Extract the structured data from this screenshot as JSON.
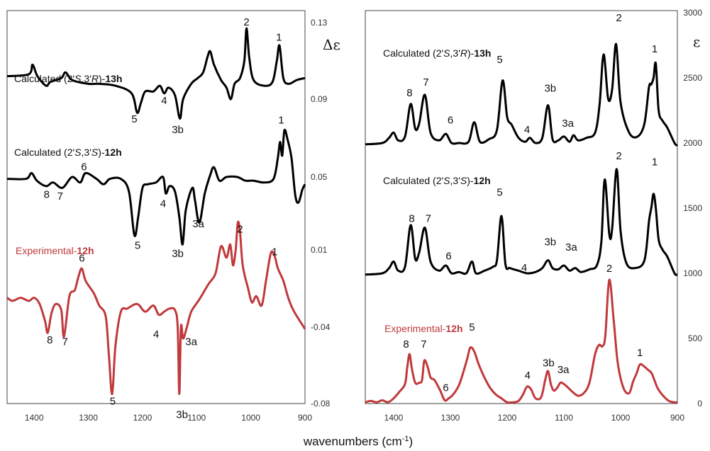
{
  "chart_data": [
    {
      "type": "line",
      "panel": "left",
      "y_symbol": "Δε",
      "xlim": [
        1450,
        900
      ],
      "ylim": [
        -0.08,
        0.13
      ],
      "x_ticks": [
        1400,
        1300,
        1200,
        1100,
        1000,
        900
      ],
      "y_ticks": [
        0.13,
        0.09,
        0.05,
        0.01,
        -0.04,
        -0.08
      ],
      "y_tick_labels": [
        "0.13",
        "0.09",
        "0.05",
        "0.01",
        "-0.04",
        "-0.08"
      ],
      "series": [
        {
          "label_pre": "Calculated (2'",
          "label_s1": "S",
          "label_mid": ",3'",
          "label_s2": "R",
          "label_post": ")-",
          "label_bold": "13h",
          "color": "#000000",
          "x": [
            1450,
            1410,
            1403,
            1394,
            1378,
            1370,
            1350,
            1342,
            1330,
            1300,
            1280,
            1250,
            1220,
            1210,
            1203,
            1195,
            1180,
            1168,
            1160,
            1152,
            1140,
            1131,
            1125,
            1110,
            1098,
            1088,
            1080,
            1075,
            1068,
            1055,
            1045,
            1037,
            1030,
            1020,
            1012,
            1008,
            1003,
            995,
            975,
            960,
            952,
            947,
            940,
            930,
            915,
            900
          ],
          "y": [
            0.102,
            0.103,
            0.108,
            0.102,
            0.097,
            0.099,
            0.101,
            0.104,
            0.1,
            0.098,
            0.098,
            0.097,
            0.093,
            0.083,
            0.088,
            0.094,
            0.094,
            0.097,
            0.093,
            0.096,
            0.092,
            0.08,
            0.09,
            0.098,
            0.101,
            0.104,
            0.112,
            0.115,
            0.108,
            0.1,
            0.096,
            0.09,
            0.098,
            0.101,
            0.11,
            0.127,
            0.112,
            0.1,
            0.097,
            0.099,
            0.11,
            0.118,
            0.101,
            0.098,
            0.1,
            0.101
          ]
        },
        {
          "label_pre": "Calculated (2'",
          "label_s1": "S",
          "label_mid": ",3'",
          "label_s2": "S",
          "label_post": ")-",
          "label_bold": "12h",
          "color": "#000000",
          "x": [
            1450,
            1415,
            1405,
            1395,
            1378,
            1365,
            1348,
            1330,
            1315,
            1305,
            1285,
            1272,
            1260,
            1240,
            1225,
            1215,
            1208,
            1200,
            1190,
            1175,
            1162,
            1157,
            1150,
            1140,
            1132,
            1126,
            1120,
            1108,
            1103,
            1095,
            1085,
            1075,
            1068,
            1058,
            1045,
            1025,
            1010,
            995,
            975,
            958,
            950,
            946,
            942,
            938,
            932,
            925,
            918,
            912,
            905,
            900
          ],
          "y": [
            0.049,
            0.049,
            0.052,
            0.048,
            0.045,
            0.047,
            0.044,
            0.05,
            0.047,
            0.052,
            0.049,
            0.046,
            0.049,
            0.049,
            0.042,
            0.018,
            0.028,
            0.044,
            0.046,
            0.047,
            0.05,
            0.041,
            0.045,
            0.042,
            0.028,
            0.013,
            0.032,
            0.044,
            0.037,
            0.025,
            0.041,
            0.051,
            0.055,
            0.048,
            0.05,
            0.05,
            0.048,
            0.048,
            0.047,
            0.049,
            0.06,
            0.068,
            0.061,
            0.074,
            0.069,
            0.06,
            0.04,
            0.036,
            0.043,
            0.046
          ]
        },
        {
          "label_pre": "Experimental-",
          "label_bold": "12h",
          "color": "#c0393b",
          "x": [
            1450,
            1440,
            1425,
            1410,
            1400,
            1390,
            1380,
            1375,
            1368,
            1360,
            1350,
            1345,
            1335,
            1325,
            1318,
            1312,
            1305,
            1290,
            1280,
            1268,
            1262,
            1256,
            1250,
            1240,
            1228,
            1210,
            1195,
            1180,
            1170,
            1160,
            1150,
            1140,
            1135,
            1132,
            1129,
            1125,
            1118,
            1110,
            1095,
            1078,
            1065,
            1055,
            1045,
            1038,
            1033,
            1028,
            1024,
            1020,
            1015,
            1005,
            998,
            990,
            980,
            972,
            963,
            956,
            950,
            940,
            930,
            920,
            900
          ],
          "y": [
            -0.021,
            -0.023,
            -0.021,
            -0.023,
            -0.021,
            -0.025,
            -0.036,
            -0.043,
            -0.031,
            -0.025,
            -0.029,
            -0.045,
            -0.02,
            -0.016,
            -0.007,
            -0.002,
            -0.01,
            -0.018,
            -0.026,
            -0.033,
            -0.055,
            -0.075,
            -0.05,
            -0.03,
            -0.028,
            -0.025,
            -0.03,
            -0.026,
            -0.032,
            -0.03,
            -0.028,
            -0.029,
            -0.04,
            -0.075,
            -0.04,
            -0.046,
            -0.04,
            -0.03,
            -0.022,
            -0.012,
            -0.005,
            0.012,
            0.005,
            0.013,
            0.0,
            0.01,
            0.025,
            0.02,
            0.0,
            -0.015,
            -0.024,
            -0.02,
            -0.026,
            -0.01,
            0.008,
            0.006,
            -0.002,
            -0.01,
            -0.022,
            -0.03,
            -0.041
          ]
        }
      ],
      "peak_labels": [
        {
          "text": "2",
          "x": 1008,
          "y": 0.1285
        },
        {
          "text": "1",
          "x": 948,
          "y": 0.1205
        },
        {
          "text": "5",
          "x": 1215,
          "y": 0.078
        },
        {
          "text": "4",
          "x": 1160,
          "y": 0.0875
        },
        {
          "text": "3b",
          "x": 1135,
          "y": 0.0725
        },
        {
          "text": "1",
          "x": 944,
          "y": 0.0775
        },
        {
          "text": "6",
          "x": 1308,
          "y": 0.0535
        },
        {
          "text": "8",
          "x": 1377,
          "y": 0.0385
        },
        {
          "text": "7",
          "x": 1352,
          "y": 0.0375
        },
        {
          "text": "4",
          "x": 1162,
          "y": 0.0335
        },
        {
          "text": "3a",
          "x": 1097,
          "y": 0.0225
        },
        {
          "text": "5",
          "x": 1209,
          "y": 0.0105
        },
        {
          "text": "3b",
          "x": 1135,
          "y": 0.0055
        },
        {
          "text": "2",
          "x": 1020,
          "y": 0.0195
        },
        {
          "text": "1",
          "x": 956,
          "y": 0.0065
        },
        {
          "text": "6",
          "x": 1312,
          "y": 0.0025
        },
        {
          "text": "8",
          "x": 1371,
          "y": -0.0485
        },
        {
          "text": "7",
          "x": 1343,
          "y": -0.0495
        },
        {
          "text": "4",
          "x": 1175,
          "y": -0.0455
        },
        {
          "text": "3a",
          "x": 1110,
          "y": -0.0495
        },
        {
          "text": "5",
          "x": 1255,
          "y": -0.0805
        },
        {
          "text": "3b",
          "x": 1127,
          "y": -0.0875
        }
      ]
    },
    {
      "type": "line",
      "panel": "right",
      "y_symbol": "ε",
      "xlim": [
        1450,
        900
      ],
      "ylim": [
        0,
        3000
      ],
      "x_ticks": [
        1400,
        1300,
        1200,
        1100,
        1000,
        900
      ],
      "y_ticks": [
        0,
        500,
        1000,
        1500,
        2000,
        2500,
        3000
      ],
      "y_tick_labels": [
        "0",
        "500",
        "1000",
        "1500",
        "2000",
        "2500",
        "3000"
      ],
      "series": [
        {
          "label_pre": "Calculated (2'",
          "label_s1": "S",
          "label_mid": ",3'",
          "label_s2": "R",
          "label_post": ")-",
          "label_bold": "13h",
          "color": "#000000",
          "x": [
            1450,
            1420,
            1408,
            1400,
            1392,
            1380,
            1370,
            1362,
            1355,
            1345,
            1335,
            1320,
            1308,
            1298,
            1285,
            1268,
            1258,
            1248,
            1232,
            1218,
            1208,
            1200,
            1192,
            1180,
            1168,
            1160,
            1150,
            1138,
            1128,
            1120,
            1110,
            1100,
            1090,
            1083,
            1075,
            1060,
            1045,
            1037,
            1030,
            1022,
            1015,
            1008,
            1000,
            985,
            970,
            958,
            950,
            946,
            942,
            938,
            933,
            926,
            918,
            905,
            900
          ],
          "y": [
            1990,
            2000,
            2040,
            2080,
            2020,
            2050,
            2300,
            2110,
            2150,
            2370,
            2080,
            2020,
            2070,
            2000,
            2000,
            2010,
            2160,
            2010,
            2030,
            2100,
            2480,
            2200,
            2140,
            2040,
            2010,
            2040,
            2000,
            2040,
            2290,
            2030,
            2020,
            2050,
            2010,
            2060,
            2020,
            2040,
            2080,
            2300,
            2680,
            2340,
            2410,
            2760,
            2310,
            2080,
            2050,
            2150,
            2430,
            2450,
            2500,
            2610,
            2250,
            2170,
            2120,
            2000,
            1980
          ]
        },
        {
          "label_pre": "Calculated (2'",
          "label_s1": "S",
          "label_mid": ",3'",
          "label_s2": "S",
          "label_post": ")-",
          "label_bold": "12h",
          "color": "#000000",
          "x": [
            1450,
            1420,
            1408,
            1400,
            1392,
            1380,
            1370,
            1362,
            1355,
            1345,
            1335,
            1320,
            1308,
            1298,
            1285,
            1272,
            1262,
            1255,
            1240,
            1225,
            1218,
            1210,
            1203,
            1195,
            1180,
            1165,
            1150,
            1138,
            1128,
            1120,
            1110,
            1100,
            1090,
            1080,
            1070,
            1055,
            1042,
            1034,
            1028,
            1020,
            1015,
            1007,
            1000,
            990,
            975,
            958,
            950,
            946,
            942,
            938,
            933,
            926,
            918,
            905,
            900
          ],
          "y": [
            990,
            1000,
            1040,
            1090,
            1020,
            1050,
            1370,
            1110,
            1160,
            1350,
            1090,
            1020,
            1060,
            1000,
            1010,
            1000,
            1090,
            1000,
            1020,
            1050,
            1100,
            1440,
            1070,
            1040,
            1020,
            1000,
            1010,
            1040,
            1100,
            1040,
            1030,
            1060,
            1020,
            1040,
            1010,
            1030,
            1060,
            1240,
            1720,
            1300,
            1340,
            1800,
            1320,
            1080,
            1040,
            1100,
            1400,
            1500,
            1610,
            1500,
            1260,
            1180,
            1130,
            1000,
            990
          ]
        },
        {
          "label_pre": "Experimental-",
          "label_bold": "12h",
          "color": "#c0393b",
          "x": [
            1450,
            1440,
            1430,
            1420,
            1410,
            1400,
            1390,
            1380,
            1376,
            1372,
            1368,
            1362,
            1355,
            1350,
            1346,
            1340,
            1335,
            1328,
            1318,
            1310,
            1303,
            1295,
            1285,
            1278,
            1270,
            1265,
            1258,
            1250,
            1240,
            1230,
            1220,
            1210,
            1200,
            1190,
            1180,
            1172,
            1165,
            1158,
            1150,
            1140,
            1133,
            1128,
            1123,
            1118,
            1112,
            1106,
            1100,
            1092,
            1085,
            1075,
            1065,
            1055,
            1045,
            1038,
            1032,
            1027,
            1020,
            1012,
            1005,
            995,
            985,
            978,
            972,
            966,
            960,
            952,
            945,
            935,
            925,
            915,
            905,
            900
          ],
          "y": [
            10,
            20,
            10,
            25,
            10,
            40,
            90,
            150,
            280,
            380,
            270,
            160,
            160,
            180,
            330,
            280,
            200,
            180,
            100,
            25,
            40,
            70,
            140,
            230,
            350,
            430,
            400,
            300,
            200,
            120,
            70,
            40,
            10,
            10,
            20,
            70,
            130,
            110,
            40,
            50,
            180,
            250,
            150,
            100,
            120,
            160,
            150,
            120,
            90,
            60,
            80,
            160,
            380,
            450,
            440,
            520,
            950,
            630,
            310,
            120,
            80,
            170,
            230,
            300,
            290,
            260,
            230,
            120,
            60,
            20,
            10,
            10
          ]
        }
      ],
      "peak_labels": [
        {
          "text": "2",
          "x": 1003,
          "y": 2935
        },
        {
          "text": "1",
          "x": 940,
          "y": 2695
        },
        {
          "text": "5",
          "x": 1213,
          "y": 2615
        },
        {
          "text": "8",
          "x": 1372,
          "y": 2360
        },
        {
          "text": "7",
          "x": 1343,
          "y": 2440
        },
        {
          "text": "6",
          "x": 1300,
          "y": 2150
        },
        {
          "text": "4",
          "x": 1165,
          "y": 2075
        },
        {
          "text": "3b",
          "x": 1124,
          "y": 2395
        },
        {
          "text": "3a",
          "x": 1093,
          "y": 2125
        },
        {
          "text": "2",
          "x": 1003,
          "y": 1875
        },
        {
          "text": "1",
          "x": 940,
          "y": 1830
        },
        {
          "text": "5",
          "x": 1213,
          "y": 1595
        },
        {
          "text": "8",
          "x": 1368,
          "y": 1395
        },
        {
          "text": "7",
          "x": 1339,
          "y": 1395
        },
        {
          "text": "6",
          "x": 1303,
          "y": 1105
        },
        {
          "text": "4",
          "x": 1170,
          "y": 1015
        },
        {
          "text": "3b",
          "x": 1124,
          "y": 1215
        },
        {
          "text": "3a",
          "x": 1087,
          "y": 1175
        },
        {
          "text": "2",
          "x": 1020,
          "y": 1010
        },
        {
          "text": "5",
          "x": 1262,
          "y": 560
        },
        {
          "text": "8",
          "x": 1378,
          "y": 430
        },
        {
          "text": "7",
          "x": 1347,
          "y": 430
        },
        {
          "text": "1",
          "x": 966,
          "y": 365
        },
        {
          "text": "4",
          "x": 1164,
          "y": 190
        },
        {
          "text": "3b",
          "x": 1127,
          "y": 285
        },
        {
          "text": "3a",
          "x": 1101,
          "y": 235
        },
        {
          "text": "6",
          "x": 1308,
          "y": 95
        }
      ]
    }
  ],
  "xlabel": {
    "prefix": "wavenumbers (cm",
    "sup": "-1",
    "suffix": ")"
  }
}
